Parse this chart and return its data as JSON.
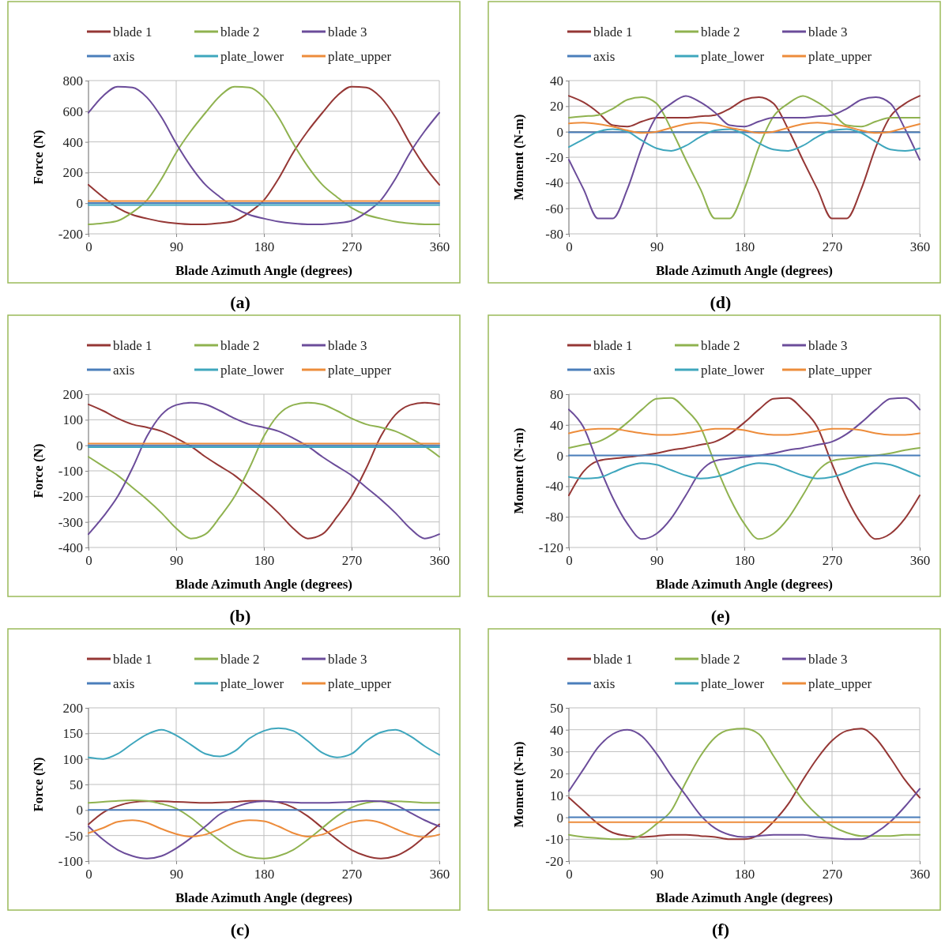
{
  "chart_data": [
    {
      "type": "line",
      "xlabel": "Blade Azimuth Angle (degrees)",
      "ylabel": "Force (N)",
      "annotations": [
        "(a)"
      ],
      "grid": true,
      "legend": "top",
      "xlim": [
        0,
        360
      ],
      "xticks": [
        0,
        90,
        180,
        270,
        360
      ],
      "ylim": [
        -200,
        800
      ],
      "yticks": [
        -200,
        0,
        200,
        400,
        600,
        800
      ],
      "x": [
        0,
        15,
        30,
        45,
        60,
        75,
        90,
        105,
        120,
        135,
        150,
        165,
        180,
        195,
        210,
        225,
        240,
        255,
        270,
        285,
        300,
        315,
        330,
        345,
        360
      ],
      "series": [
        {
          "name": "blade 1",
          "color": "#953735",
          "values": [
            120,
            40,
            -30,
            -75,
            -100,
            -120,
            -132,
            -138,
            -138,
            -130,
            -115,
            -60,
            20,
            160,
            330,
            470,
            590,
            700,
            760,
            755,
            690,
            560,
            390,
            240,
            120
          ]
        },
        {
          "name": "blade 2",
          "color": "#8fb24f",
          "values": [
            -138,
            -130,
            -115,
            -60,
            20,
            160,
            330,
            470,
            590,
            700,
            760,
            755,
            690,
            560,
            390,
            240,
            120,
            40,
            -30,
            -75,
            -100,
            -120,
            -132,
            -138,
            -138
          ]
        },
        {
          "name": "blade 3",
          "color": "#6b4c9a",
          "values": [
            590,
            700,
            760,
            755,
            690,
            560,
            390,
            240,
            120,
            40,
            -30,
            -75,
            -100,
            -120,
            -132,
            -138,
            -138,
            -130,
            -115,
            -60,
            20,
            160,
            330,
            470,
            590
          ]
        },
        {
          "name": "axis",
          "color": "#4a7ebb",
          "values": [
            1,
            1,
            1,
            1,
            1,
            1,
            1,
            1,
            1,
            1,
            1,
            1,
            1,
            1,
            1,
            1,
            1,
            1,
            1,
            1,
            1,
            1,
            1,
            1,
            1
          ]
        },
        {
          "name": "plate_lower",
          "color": "#3ea6bd",
          "values": [
            -12,
            -12,
            -12,
            -12,
            -12,
            -12,
            -12,
            -12,
            -12,
            -12,
            -12,
            -12,
            -12,
            -12,
            -12,
            -12,
            -12,
            -12,
            -12,
            -12,
            -12,
            -12,
            -12,
            -12,
            -12
          ]
        },
        {
          "name": "plate_upper",
          "color": "#ed8c3b",
          "values": [
            14,
            14,
            14,
            14,
            14,
            14,
            14,
            14,
            14,
            14,
            14,
            14,
            14,
            14,
            14,
            14,
            14,
            14,
            14,
            14,
            14,
            14,
            14,
            14,
            14
          ]
        }
      ]
    },
    {
      "type": "line",
      "xlabel": "Blade Azimuth Angle (degrees)",
      "ylabel": "Moment (N-m)",
      "annotations": [
        "(d)"
      ],
      "grid": true,
      "legend": "top",
      "xlim": [
        0,
        360
      ],
      "xticks": [
        0,
        90,
        180,
        270,
        360
      ],
      "ylim": [
        -80,
        40
      ],
      "yticks": [
        -80,
        -60,
        -40,
        -20,
        0,
        20,
        40
      ],
      "x": [
        0,
        15,
        30,
        45,
        60,
        75,
        90,
        105,
        120,
        135,
        150,
        165,
        180,
        195,
        210,
        225,
        240,
        255,
        270,
        285,
        300,
        315,
        330,
        345,
        360
      ],
      "series": [
        {
          "name": "blade 1",
          "color": "#953735",
          "values": [
            28,
            23,
            15,
            5,
            4,
            8,
            11,
            11,
            11,
            12,
            13,
            18,
            25,
            27,
            22,
            2,
            -22,
            -45,
            -68,
            -68,
            -45,
            -12,
            12,
            22,
            28
          ]
        },
        {
          "name": "blade 2",
          "color": "#8fb24f",
          "values": [
            11,
            12,
            13,
            18,
            25,
            27,
            22,
            2,
            -22,
            -45,
            -68,
            -68,
            -45,
            -12,
            12,
            22,
            28,
            23,
            15,
            5,
            4,
            8,
            11,
            11,
            11
          ]
        },
        {
          "name": "blade 3",
          "color": "#6b4c9a",
          "values": [
            -22,
            -45,
            -68,
            -68,
            -45,
            -12,
            12,
            22,
            28,
            23,
            15,
            5,
            4,
            8,
            11,
            11,
            11,
            12,
            13,
            18,
            25,
            27,
            22,
            2,
            -22
          ]
        },
        {
          "name": "axis",
          "color": "#4a7ebb",
          "values": [
            -0.5,
            -0.5,
            -0.5,
            -0.5,
            -0.5,
            -0.5,
            -0.5,
            -0.5,
            -0.5,
            -0.5,
            -0.5,
            -0.5,
            -0.5,
            -0.5,
            -0.5,
            -0.5,
            -0.5,
            -0.5,
            -0.5,
            -0.5,
            -0.5,
            -0.5,
            -0.5,
            -0.5,
            -0.5
          ]
        },
        {
          "name": "plate_lower",
          "color": "#3ea6bd",
          "values": [
            -12,
            -6,
            0,
            2,
            0,
            -7,
            -13,
            -15,
            -11,
            -4,
            1,
            2,
            -2,
            -9,
            -14,
            -15,
            -11,
            -4,
            1,
            2,
            -1,
            -8,
            -14,
            -15,
            -13
          ]
        },
        {
          "name": "plate_upper",
          "color": "#ed8c3b",
          "values": [
            6.5,
            7,
            6,
            4,
            1,
            -1,
            0,
            3,
            6,
            7,
            6,
            3,
            1,
            -1,
            0,
            3,
            6,
            7,
            6,
            4,
            1,
            -1,
            0,
            3,
            6
          ]
        }
      ]
    },
    {
      "type": "line",
      "xlabel": "Blade Azimuth Angle (degrees)",
      "ylabel": "Force (N)",
      "annotations": [
        "(b)"
      ],
      "grid": true,
      "legend": "top",
      "xlim": [
        0,
        360
      ],
      "xticks": [
        0,
        90,
        180,
        270,
        360
      ],
      "ylim": [
        -400,
        200
      ],
      "yticks": [
        -400,
        -300,
        -200,
        -100,
        0,
        100,
        200
      ],
      "x": [
        0,
        15,
        30,
        45,
        60,
        75,
        90,
        105,
        120,
        135,
        150,
        165,
        180,
        195,
        210,
        225,
        240,
        255,
        270,
        285,
        300,
        315,
        330,
        345,
        360
      ],
      "series": [
        {
          "name": "blade 1",
          "color": "#953735",
          "values": [
            160,
            135,
            105,
            82,
            70,
            55,
            28,
            -4,
            -45,
            -82,
            -118,
            -165,
            -212,
            -265,
            -325,
            -365,
            -348,
            -280,
            -200,
            -90,
            35,
            120,
            158,
            167,
            160
          ]
        },
        {
          "name": "blade 2",
          "color": "#8fb24f",
          "values": [
            -45,
            -82,
            -118,
            -165,
            -212,
            -265,
            -325,
            -365,
            -348,
            -280,
            -200,
            -90,
            35,
            120,
            158,
            167,
            160,
            135,
            105,
            82,
            70,
            55,
            28,
            -4,
            -45
          ]
        },
        {
          "name": "blade 3",
          "color": "#6b4c9a",
          "values": [
            -348,
            -280,
            -200,
            -90,
            35,
            120,
            158,
            167,
            160,
            135,
            105,
            82,
            70,
            55,
            28,
            -4,
            -45,
            -82,
            -118,
            -165,
            -212,
            -265,
            -325,
            -365,
            -348
          ]
        },
        {
          "name": "axis",
          "color": "#4a7ebb",
          "values": [
            0,
            0,
            0,
            0,
            0,
            0,
            0,
            0,
            0,
            0,
            0,
            0,
            0,
            0,
            0,
            0,
            0,
            0,
            0,
            0,
            0,
            0,
            0,
            0,
            0
          ]
        },
        {
          "name": "plate_lower",
          "color": "#3ea6bd",
          "values": [
            -7,
            -7,
            -7,
            -7,
            -7,
            -7,
            -7,
            -7,
            -7,
            -7,
            -7,
            -7,
            -7,
            -7,
            -7,
            -7,
            -7,
            -7,
            -7,
            -7,
            -7,
            -7,
            -7,
            -7,
            -7
          ]
        },
        {
          "name": "plate_upper",
          "color": "#ed8c3b",
          "values": [
            7,
            7,
            7,
            7,
            7,
            7,
            7,
            7,
            7,
            7,
            7,
            7,
            7,
            7,
            7,
            7,
            7,
            7,
            7,
            7,
            7,
            7,
            7,
            7,
            7
          ]
        }
      ]
    },
    {
      "type": "line",
      "xlabel": "Blade Azimuth Angle (degrees)",
      "ylabel": "Moment (N-m)",
      "annotations": [
        "(e)"
      ],
      "grid": true,
      "legend": "top",
      "xlim": [
        0,
        360
      ],
      "xticks": [
        0,
        90,
        180,
        270,
        360
      ],
      "ylim": [
        -120,
        80
      ],
      "yticks": [
        -120,
        -80,
        -40,
        0,
        40,
        80
      ],
      "x": [
        0,
        15,
        30,
        45,
        60,
        75,
        90,
        105,
        120,
        135,
        150,
        165,
        180,
        195,
        210,
        225,
        240,
        255,
        270,
        285,
        300,
        315,
        330,
        345,
        360
      ],
      "series": [
        {
          "name": "blade 1",
          "color": "#953735",
          "values": [
            -52,
            -21,
            -7,
            -4,
            -2,
            0,
            3,
            7,
            10,
            14,
            18,
            28,
            43,
            60,
            74,
            75,
            60,
            37,
            -11,
            -55,
            -89,
            -109,
            -102,
            -82,
            -52
          ]
        },
        {
          "name": "blade 2",
          "color": "#8fb24f",
          "values": [
            10,
            14,
            18,
            28,
            43,
            60,
            74,
            75,
            60,
            37,
            -11,
            -55,
            -89,
            -109,
            -102,
            -82,
            -52,
            -21,
            -7,
            -4,
            -2,
            0,
            3,
            7,
            10
          ]
        },
        {
          "name": "blade 3",
          "color": "#6b4c9a",
          "values": [
            60,
            37,
            -11,
            -55,
            -89,
            -109,
            -102,
            -82,
            -52,
            -21,
            -7,
            -4,
            -2,
            0,
            3,
            7,
            10,
            14,
            18,
            28,
            43,
            60,
            74,
            75,
            60
          ]
        },
        {
          "name": "axis",
          "color": "#4a7ebb",
          "values": [
            0,
            0,
            0,
            0,
            0,
            0,
            0,
            0,
            0,
            0,
            0,
            0,
            0,
            0,
            0,
            0,
            0,
            0,
            0,
            0,
            0,
            0,
            0,
            0,
            0
          ]
        },
        {
          "name": "plate_lower",
          "color": "#3ea6bd",
          "values": [
            -28,
            -30,
            -29,
            -22,
            -14,
            -10,
            -12,
            -19,
            -26,
            -30,
            -28,
            -22,
            -14,
            -10,
            -12,
            -19,
            -26,
            -30,
            -28,
            -22,
            -14,
            -10,
            -12,
            -19,
            -27
          ]
        },
        {
          "name": "plate_upper",
          "color": "#ed8c3b",
          "values": [
            29,
            33,
            35,
            35,
            32,
            29,
            27,
            27,
            29,
            32,
            35,
            35,
            33,
            29,
            27,
            27,
            29,
            32,
            35,
            35,
            33,
            29,
            27,
            27,
            29
          ]
        }
      ]
    },
    {
      "type": "line",
      "xlabel": "Blade Azimuth Angle (degrees)",
      "ylabel": "Force (N)",
      "annotations": [
        "(c)"
      ],
      "grid": true,
      "legend": "top",
      "xlim": [
        0,
        360
      ],
      "xticks": [
        0,
        90,
        180,
        270,
        360
      ],
      "ylim": [
        -100,
        200
      ],
      "yticks": [
        -100,
        -50,
        0,
        50,
        100,
        150,
        200
      ],
      "x": [
        0,
        15,
        30,
        45,
        60,
        75,
        90,
        105,
        120,
        135,
        150,
        165,
        180,
        195,
        210,
        225,
        240,
        255,
        270,
        285,
        300,
        315,
        330,
        345,
        360
      ],
      "series": [
        {
          "name": "blade 1",
          "color": "#953735",
          "values": [
            -28,
            -5,
            8,
            15,
            17,
            17,
            16,
            15,
            14,
            15,
            16,
            18,
            18,
            15,
            5,
            -12,
            -35,
            -58,
            -78,
            -90,
            -95,
            -90,
            -75,
            -52,
            -28
          ]
        },
        {
          "name": "blade 2",
          "color": "#8fb24f",
          "values": [
            14,
            16,
            18,
            19,
            18,
            12,
            3,
            -15,
            -38,
            -60,
            -80,
            -92,
            -95,
            -90,
            -78,
            -58,
            -35,
            -12,
            5,
            14,
            17,
            17,
            16,
            14,
            14
          ]
        },
        {
          "name": "blade 3",
          "color": "#6b4c9a",
          "values": [
            -32,
            -58,
            -78,
            -90,
            -95,
            -90,
            -75,
            -55,
            -32,
            -8,
            5,
            14,
            17,
            16,
            15,
            14,
            14,
            15,
            16,
            18,
            17,
            10,
            -5,
            -20,
            -32
          ]
        },
        {
          "name": "axis",
          "color": "#4a7ebb",
          "values": [
            0,
            0,
            0,
            0,
            0,
            0,
            0,
            0,
            0,
            0,
            0,
            0,
            0,
            0,
            0,
            0,
            0,
            0,
            0,
            0,
            0,
            0,
            0,
            0,
            0
          ]
        },
        {
          "name": "plate_lower",
          "color": "#3ea6bd",
          "values": [
            103,
            100,
            110,
            130,
            148,
            157,
            146,
            128,
            110,
            105,
            115,
            140,
            155,
            160,
            155,
            135,
            112,
            103,
            110,
            135,
            152,
            157,
            145,
            125,
            108
          ]
        },
        {
          "name": "plate_upper",
          "color": "#ed8c3b",
          "values": [
            -45,
            -35,
            -23,
            -20,
            -25,
            -37,
            -47,
            -52,
            -48,
            -37,
            -25,
            -20,
            -22,
            -32,
            -45,
            -52,
            -48,
            -35,
            -24,
            -20,
            -25,
            -37,
            -48,
            -53,
            -48
          ]
        }
      ]
    },
    {
      "type": "line",
      "xlabel": "Blade Azimuth Angle (degrees)",
      "ylabel": "Moment (N-m)",
      "annotations": [
        "(f)"
      ],
      "grid": true,
      "legend": "top",
      "xlim": [
        0,
        360
      ],
      "xticks": [
        0,
        90,
        180,
        270,
        360
      ],
      "ylim": [
        -20,
        50
      ],
      "yticks": [
        -20,
        -10,
        0,
        10,
        20,
        30,
        40,
        50
      ],
      "x": [
        0,
        15,
        30,
        45,
        60,
        75,
        90,
        105,
        120,
        135,
        150,
        165,
        180,
        195,
        210,
        225,
        240,
        255,
        270,
        285,
        300,
        315,
        330,
        345,
        360
      ],
      "series": [
        {
          "name": "blade 1",
          "color": "#953735",
          "values": [
            9,
            3,
            -3,
            -7,
            -8.5,
            -9,
            -8.5,
            -8,
            -8,
            -8.5,
            -9,
            -10,
            -10,
            -8,
            -2,
            6,
            17,
            27,
            35,
            39.5,
            40.5,
            36,
            27,
            17,
            9
          ]
        },
        {
          "name": "blade 2",
          "color": "#8fb24f",
          "values": [
            -8,
            -9,
            -9.5,
            -10,
            -10,
            -8,
            -3,
            3,
            16,
            28,
            36.5,
            40,
            40.5,
            38,
            28,
            17.5,
            8,
            1,
            -4,
            -7,
            -8.5,
            -8.5,
            -8.5,
            -8,
            -8
          ]
        },
        {
          "name": "blade 3",
          "color": "#6b4c9a",
          "values": [
            12,
            22,
            32,
            38,
            40,
            37,
            29,
            19,
            10,
            1,
            -5,
            -8,
            -9,
            -8.5,
            -8,
            -8,
            -8,
            -9,
            -9.5,
            -10,
            -10,
            -7,
            -2,
            5,
            13
          ]
        },
        {
          "name": "axis",
          "color": "#4a7ebb",
          "values": [
            0,
            0,
            0,
            0,
            0,
            0,
            0,
            0,
            0,
            0,
            0,
            0,
            0,
            0,
            0,
            0,
            0,
            0,
            0,
            0,
            0,
            0,
            0,
            0,
            0
          ]
        },
        {
          "name": "plate_lower",
          "color": "#3ea6bd",
          "values": [
            null,
            null,
            null,
            null,
            null,
            null,
            null,
            null,
            null,
            null,
            null,
            null,
            null,
            null,
            null,
            null,
            null,
            null,
            null,
            null,
            null,
            null,
            null,
            null,
            null
          ]
        },
        {
          "name": "plate_upper",
          "color": "#ed8c3b",
          "values": [
            -2.2,
            -2.2,
            -2.2,
            -2.2,
            -2.2,
            -2.2,
            -2.2,
            -2.2,
            -2.2,
            -2.2,
            -2.2,
            -2.2,
            -2.2,
            -2.2,
            -2.2,
            -2.2,
            -2.2,
            -2.2,
            -2.2,
            -2.2,
            -2.2,
            -2.2,
            -2.2,
            -2.2,
            -2.2
          ]
        }
      ]
    }
  ]
}
